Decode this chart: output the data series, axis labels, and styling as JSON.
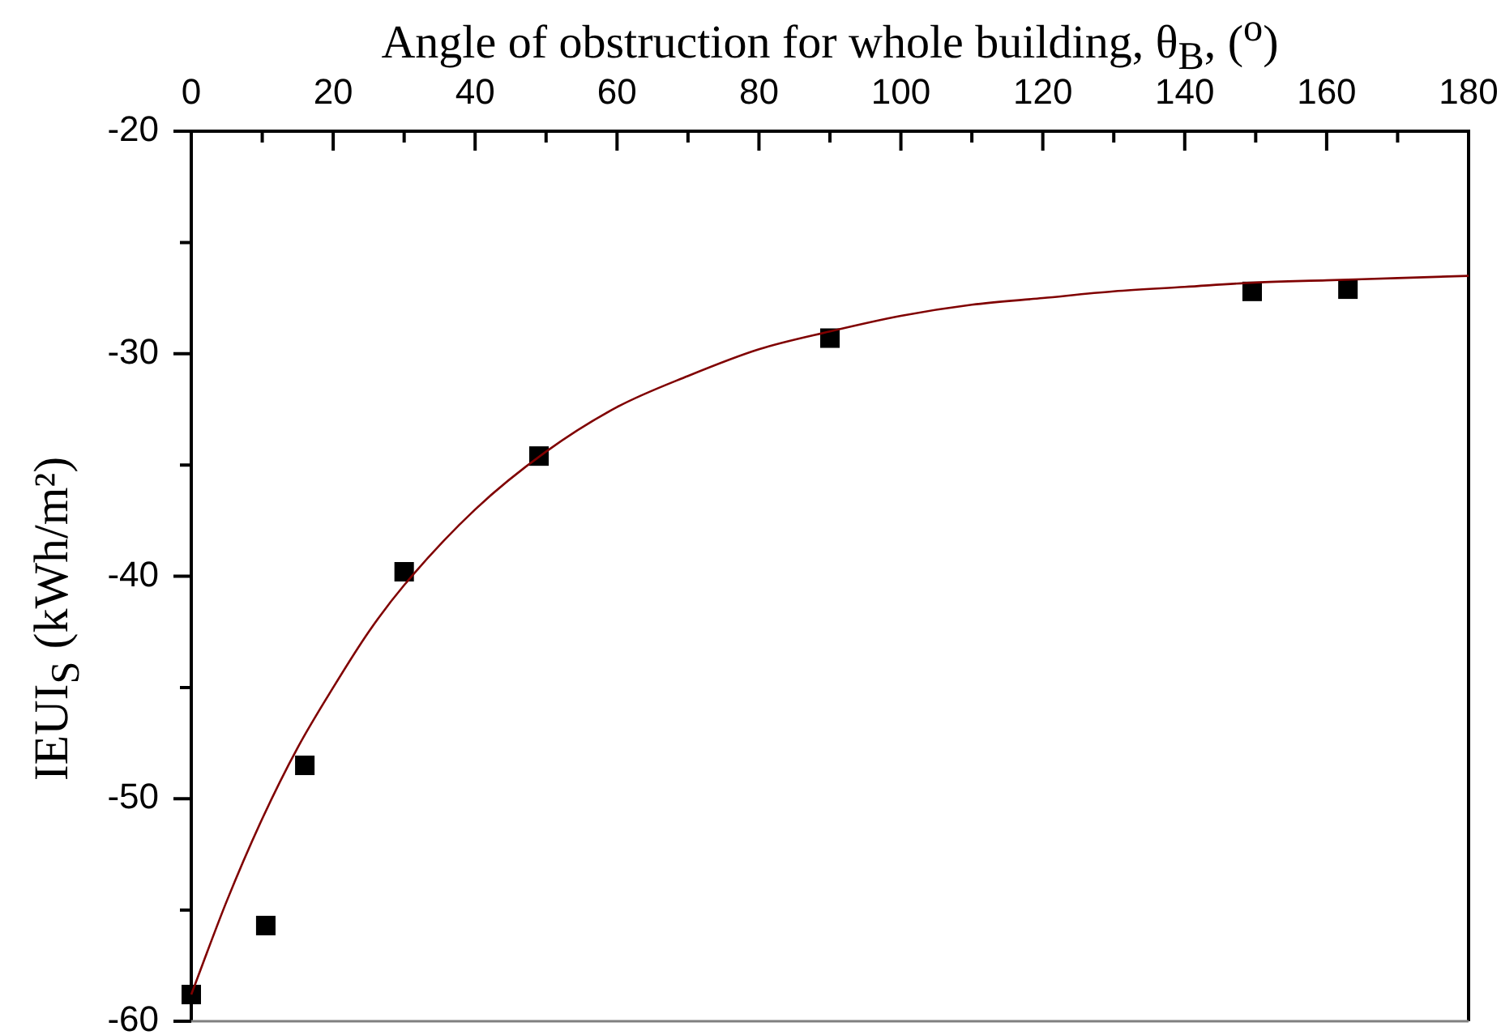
{
  "chart_data": {
    "type": "scatter",
    "xlabel": "Angle of obstruction for whole building, θ$_{B}$, ($^{o}$)",
    "ylabel": "IEUI$_{S}$ (kWh/m²)",
    "xlim": [
      0,
      180
    ],
    "xticks": [
      0,
      {
        "value": 10,
        "label": null
      },
      20,
      {
        "value": 30,
        "label": null
      },
      40,
      {
        "value": 50,
        "label": null
      },
      60,
      {
        "value": 70,
        "label": null
      },
      80,
      {
        "value": 90,
        "label": null
      },
      100,
      {
        "value": 110,
        "label": null
      },
      120,
      {
        "value": 130,
        "label": null
      },
      140,
      {
        "value": 150,
        "label": null
      },
      160,
      {
        "value": 170,
        "label": null
      },
      180
    ],
    "ylim": [
      -60,
      -20
    ],
    "yticks": [
      -60,
      {
        "value": -55,
        "label": null
      },
      -50,
      {
        "value": -45,
        "label": null
      },
      -40,
      {
        "value": -35,
        "label": null
      },
      -30,
      {
        "value": -25,
        "label": null
      },
      -20
    ],
    "grid": false,
    "legend": false,
    "series": [
      {
        "type": "scatter",
        "color": "#000000",
        "marker": "square",
        "x": [
          0,
          10.5,
          16,
          30,
          49,
          90,
          149.5,
          163
        ],
        "values": [
          -58.8,
          -55.7,
          -48.5,
          -39.8,
          -34.6,
          -29.3,
          -27.2,
          -27.1
        ]
      },
      {
        "type": "line",
        "color": "#800000",
        "marker": "none",
        "line_style": "solid",
        "x": [
          0,
          5,
          10,
          15,
          20,
          25,
          30,
          40,
          50,
          60,
          70,
          80,
          90,
          100,
          110,
          120,
          130,
          140,
          150,
          160,
          170,
          180
        ],
        "values": [
          -58.8,
          -54.6,
          -50.9,
          -47.7,
          -45.0,
          -42.5,
          -40.4,
          -37.0,
          -34.4,
          -32.4,
          -31.0,
          -29.8,
          -29.0,
          -28.3,
          -27.8,
          -27.5,
          -27.2,
          -27.0,
          -26.8,
          -26.7,
          -26.6,
          -26.5
        ]
      }
    ]
  }
}
